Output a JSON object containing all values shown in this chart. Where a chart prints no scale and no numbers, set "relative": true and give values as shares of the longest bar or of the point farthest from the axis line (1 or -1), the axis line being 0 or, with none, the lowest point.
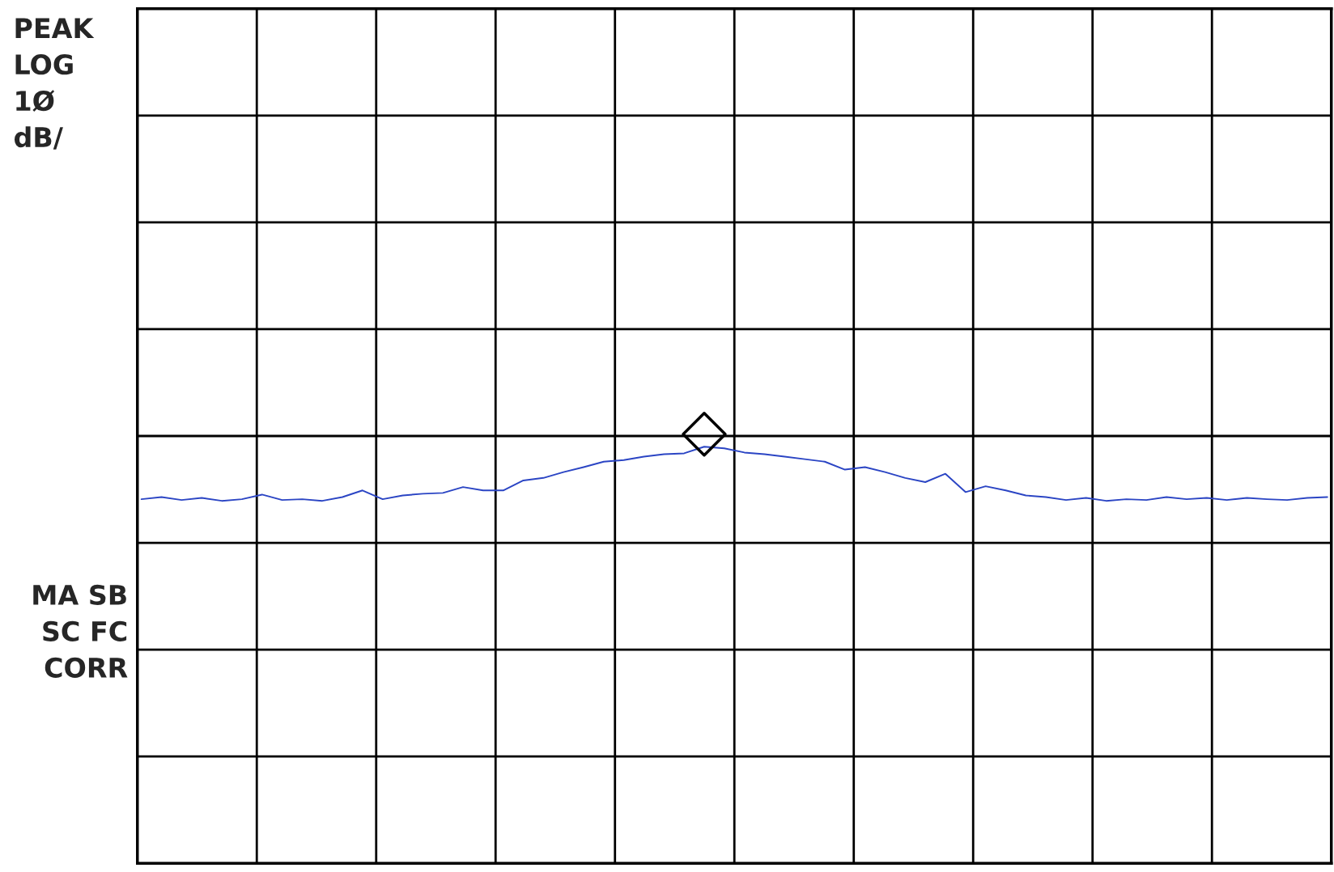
{
  "chart_data": {
    "type": "line",
    "relative": true,
    "grid": true,
    "categories": [
      null,
      null,
      null,
      null,
      null,
      null,
      null,
      null,
      null,
      null,
      null,
      null,
      null,
      null,
      null,
      null,
      null,
      null,
      null,
      null,
      null,
      null,
      null,
      null,
      null,
      null,
      null,
      null,
      null,
      null,
      null,
      null,
      null,
      null,
      null,
      null,
      null,
      null,
      null,
      null,
      null,
      null,
      null,
      null,
      null,
      null,
      null,
      null,
      null,
      null,
      null,
      null,
      null,
      null,
      null,
      null,
      null,
      null,
      null,
      null
    ],
    "series": [
      {
        "color": "#2b45c4",
        "marker": "none",
        "values": [
          0.874,
          0.879,
          0.872,
          0.877,
          0.87,
          0.874,
          0.885,
          0.872,
          0.874,
          0.87,
          0.879,
          0.895,
          0.874,
          0.883,
          0.887,
          0.889,
          0.903,
          0.895,
          0.895,
          0.919,
          0.925,
          0.939,
          0.951,
          0.964,
          0.968,
          0.976,
          0.982,
          0.984,
          1.0,
          0.996,
          0.986,
          0.982,
          0.976,
          0.97,
          0.964,
          0.945,
          0.951,
          0.939,
          0.925,
          0.915,
          0.935,
          0.891,
          0.905,
          0.895,
          0.883,
          0.879,
          0.872,
          0.877,
          0.87,
          0.874,
          0.872,
          0.879,
          0.874,
          0.877,
          0.872,
          0.877,
          0.874,
          0.872,
          0.877,
          0.879
        ]
      }
    ],
    "annotations": [
      "PEAK\nLOG\n1Ø\ndB/",
      "MA SB\nSC FC\nCORR"
    ]
  }
}
